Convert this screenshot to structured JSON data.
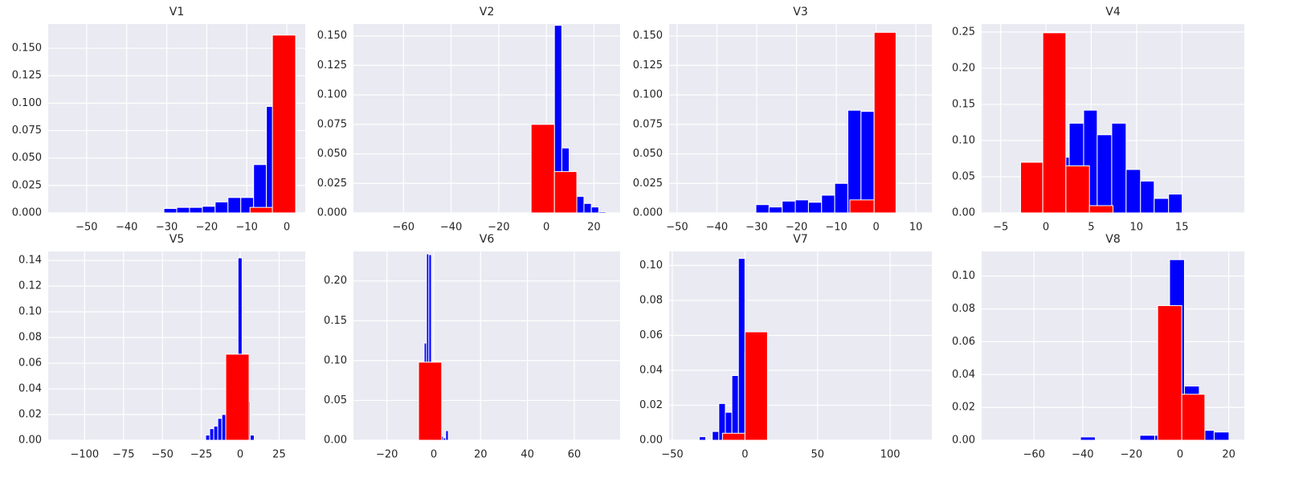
{
  "chart_data": [
    {
      "type": "histogram",
      "title": "V1",
      "xlim": [
        -59.6,
        4.6
      ],
      "ylim": [
        0,
        0.172
      ],
      "xticks": [
        {
          "value": -50,
          "label": "−50"
        },
        {
          "value": -40,
          "label": "−40"
        },
        {
          "value": -30,
          "label": "−30"
        },
        {
          "value": -20,
          "label": "−20"
        },
        {
          "value": -10,
          "label": "−10"
        },
        0
      ],
      "yticks": [
        {
          "value": 0,
          "label": "0.000"
        },
        {
          "value": 0.025,
          "label": "0.025"
        },
        {
          "value": 0.05,
          "label": "0.050"
        },
        {
          "value": 0.075,
          "label": "0.075"
        },
        {
          "value": 0.1,
          "label": "0.100"
        },
        {
          "value": 0.125,
          "label": "0.125"
        },
        {
          "value": 0.15,
          "label": "0.150"
        }
      ],
      "grid": true,
      "series": [
        {
          "color": "#0000ff",
          "bins": [
            -30.7,
            -27.5,
            -24.3,
            -21.1,
            -17.9,
            -14.7,
            -11.5,
            -8.3,
            -5.1,
            -1.9,
            1.3
          ],
          "values": [
            0.004,
            0.005,
            0.005,
            0.006,
            0.01,
            0.014,
            0.014,
            0.044,
            0.097,
            0.16
          ]
        },
        {
          "color": "#ff0000",
          "bins": [
            -9.2,
            -3.6,
            2.2
          ],
          "values": [
            0.005,
            0.162
          ]
        }
      ]
    },
    {
      "type": "histogram",
      "title": "V2",
      "xlim": [
        -81,
        31
      ],
      "ylim": [
        0,
        0.16
      ],
      "xticks": [
        {
          "value": -60,
          "label": "−60"
        },
        {
          "value": -40,
          "label": "−40"
        },
        {
          "value": -20,
          "label": "−20"
        },
        0,
        20
      ],
      "yticks": [
        {
          "value": 0,
          "label": "0.000"
        },
        {
          "value": 0.025,
          "label": "0.025"
        },
        {
          "value": 0.05,
          "label": "0.050"
        },
        {
          "value": 0.075,
          "label": "0.075"
        },
        {
          "value": 0.1,
          "label": "0.100"
        },
        {
          "value": 0.125,
          "label": "0.125"
        },
        {
          "value": 0.15,
          "label": "0.150"
        }
      ],
      "grid": true,
      "series": [
        {
          "color": "#0000ff",
          "bins": [
            0.3,
            3.4,
            6.5,
            9.6,
            12.7,
            15.8,
            18.9,
            22.0,
            25.1
          ],
          "values": [
            0.07,
            0.159,
            0.055,
            0.03,
            0.014,
            0.008,
            0.005,
            0.001
          ]
        },
        {
          "color": "#ff0000",
          "bins": [
            -6.4,
            3.4,
            12.8
          ],
          "values": [
            0.075,
            0.035
          ]
        }
      ]
    },
    {
      "type": "histogram",
      "title": "V3",
      "xlim": [
        -52,
        14
      ],
      "ylim": [
        0,
        0.16
      ],
      "xticks": [
        {
          "value": -50,
          "label": "−50"
        },
        {
          "value": -40,
          "label": "−40"
        },
        {
          "value": -30,
          "label": "−30"
        },
        {
          "value": -20,
          "label": "−20"
        },
        {
          "value": -10,
          "label": "−10"
        },
        0,
        10
      ],
      "yticks": [
        {
          "value": 0,
          "label": "0.000"
        },
        {
          "value": 0.025,
          "label": "0.025"
        },
        {
          "value": 0.05,
          "label": "0.050"
        },
        {
          "value": 0.075,
          "label": "0.075"
        },
        {
          "value": 0.1,
          "label": "0.100"
        },
        {
          "value": 0.125,
          "label": "0.125"
        },
        {
          "value": 0.15,
          "label": "0.150"
        }
      ],
      "grid": true,
      "series": [
        {
          "color": "#0000ff",
          "bins": [
            -30.2,
            -26.9,
            -23.6,
            -20.3,
            -17.0,
            -13.7,
            -10.4,
            -7.1,
            -3.8,
            -0.5,
            2.8
          ],
          "values": [
            0.007,
            0.005,
            0.01,
            0.011,
            0.009,
            0.015,
            0.025,
            0.087,
            0.086,
            0.14
          ]
        },
        {
          "color": "#ff0000",
          "bins": [
            -6.6,
            -0.5,
            5.0
          ],
          "values": [
            0.011,
            0.153
          ]
        }
      ]
    },
    {
      "type": "histogram",
      "title": "V4",
      "xlim": [
        -7.1,
        21.9
      ],
      "ylim": [
        0,
        0.261
      ],
      "xticks": [
        {
          "value": -5,
          "label": "−5"
        },
        0,
        5,
        10,
        15
      ],
      "yticks": [
        {
          "value": 0,
          "label": "0.00"
        },
        {
          "value": 0.05,
          "label": "0.05"
        },
        {
          "value": 0.1,
          "label": "0.10"
        },
        {
          "value": 0.15,
          "label": "0.15"
        },
        {
          "value": 0.2,
          "label": "0.20"
        },
        {
          "value": 0.25,
          "label": "0.25"
        }
      ],
      "grid": true,
      "series": [
        {
          "color": "#0000ff",
          "bins": [
            1.0,
            2.57,
            4.16,
            5.66,
            7.26,
            8.85,
            10.44,
            11.95,
            13.54,
            15.04
          ],
          "values": [
            0.077,
            0.124,
            0.142,
            0.108,
            0.124,
            0.06,
            0.044,
            0.02,
            0.026
          ]
        },
        {
          "color": "#ff0000",
          "bins": [
            -2.8,
            -0.35,
            2.2,
            4.8,
            7.4
          ],
          "values": [
            0.07,
            0.249,
            0.065,
            0.01
          ]
        }
      ]
    },
    {
      "type": "histogram",
      "title": "V5",
      "xlim": [
        -123.4,
        41.8
      ],
      "ylim": [
        0,
        0.147
      ],
      "xticks": [
        {
          "value": -100,
          "label": "−100"
        },
        {
          "value": -75,
          "label": "−75"
        },
        {
          "value": -50,
          "label": "−50"
        },
        {
          "value": -25,
          "label": "−25"
        },
        0,
        25
      ],
      "yticks": [
        {
          "value": 0,
          "label": "0.00"
        },
        {
          "value": 0.02,
          "label": "0.02"
        },
        {
          "value": 0.04,
          "label": "0.04"
        },
        {
          "value": 0.06,
          "label": "0.06"
        },
        {
          "value": 0.08,
          "label": "0.08"
        },
        {
          "value": 0.1,
          "label": "0.10"
        },
        {
          "value": 0.12,
          "label": "0.12"
        },
        {
          "value": 0.14,
          "label": "0.14"
        }
      ],
      "grid": true,
      "series": [
        {
          "color": "#0000ff",
          "bins": [
            -22.2,
            -19.6,
            -17.0,
            -14.4,
            -11.8,
            -9.2,
            -6.6,
            -4.0,
            -1.4,
            1.2,
            3.8,
            6.4,
            9.0
          ],
          "values": [
            0.004,
            0.009,
            0.011,
            0.017,
            0.02,
            0.03,
            0.04,
            0.06,
            0.142,
            0.06,
            0.03,
            0.004
          ]
        },
        {
          "color": "#ff0000",
          "bins": [
            -9.3,
            5.7
          ],
          "values": [
            0.067
          ]
        }
      ]
    },
    {
      "type": "histogram",
      "title": "V6",
      "xlim": [
        -34.3,
        79.6
      ],
      "ylim": [
        0,
        0.237
      ],
      "xticks": [
        {
          "value": -20,
          "label": "−20"
        },
        0,
        20,
        40,
        60
      ],
      "yticks": [
        {
          "value": 0,
          "label": "0.00"
        },
        {
          "value": 0.05,
          "label": "0.05"
        },
        {
          "value": 0.1,
          "label": "0.10"
        },
        {
          "value": 0.15,
          "label": "0.15"
        },
        {
          "value": 0.2,
          "label": "0.20"
        }
      ],
      "grid": true,
      "series": [
        {
          "color": "#0000ff",
          "bins": [
            -4.1,
            -3.1,
            -2.1,
            -1.0,
            0.0,
            1.0,
            2.0,
            3.1,
            4.1,
            5.1,
            6.2
          ],
          "values": [
            0.122,
            0.234,
            0.233,
            0.09,
            0.05,
            0.02,
            0.01,
            0.005,
            0.003,
            0.012
          ]
        },
        {
          "color": "#ff0000",
          "bins": [
            -6.5,
            3.4
          ],
          "values": [
            0.098
          ]
        }
      ]
    },
    {
      "type": "histogram",
      "title": "V7",
      "xlim": [
        -52.2,
        128.7
      ],
      "ylim": [
        0,
        0.108
      ],
      "xticks": [
        {
          "value": -50,
          "label": "−50"
        },
        0,
        50,
        100
      ],
      "yticks": [
        {
          "value": 0,
          "label": "0.00"
        },
        {
          "value": 0.02,
          "label": "0.02"
        },
        {
          "value": 0.04,
          "label": "0.04"
        },
        {
          "value": 0.06,
          "label": "0.06"
        },
        {
          "value": 0.08,
          "label": "0.08"
        },
        {
          "value": 0.1,
          "label": "0.10"
        }
      ],
      "grid": true,
      "series": [
        {
          "color": "#0000ff",
          "bins": [
            -31.5,
            -27,
            -22.5,
            -18,
            -13.5,
            -9,
            -4.5,
            0,
            4.5,
            9
          ],
          "values": [
            0.002,
            0,
            0.005,
            0.021,
            0.016,
            0.037,
            0.104,
            0.05,
            0.02
          ]
        },
        {
          "color": "#ff0000",
          "bins": [
            -15.5,
            0,
            15.5
          ],
          "values": [
            0.004,
            0.062
          ]
        }
      ]
    },
    {
      "type": "histogram",
      "title": "V8",
      "xlim": [
        -81.5,
        26.4
      ],
      "ylim": [
        0,
        0.115
      ],
      "xticks": [
        {
          "value": -60,
          "label": "−60"
        },
        {
          "value": -40,
          "label": "−40"
        },
        {
          "value": -20,
          "label": "−20"
        },
        0,
        20
      ],
      "yticks": [
        {
          "value": 0,
          "label": "0.00"
        },
        {
          "value": 0.02,
          "label": "0.02"
        },
        {
          "value": 0.04,
          "label": "0.04"
        },
        {
          "value": 0.06,
          "label": "0.06"
        },
        {
          "value": 0.08,
          "label": "0.08"
        },
        {
          "value": 0.1,
          "label": "0.10"
        }
      ],
      "grid": true,
      "series": [
        {
          "color": "#0000ff",
          "bins": [
            -40.9,
            -34.8,
            -28.7,
            -22.6,
            -16.5,
            -10.4,
            -4.3,
            1.8,
            7.9,
            14.0,
            20.1
          ],
          "values": [
            0.002,
            0,
            0,
            0,
            0.003,
            0.003,
            0.11,
            0.033,
            0.006,
            0.005
          ]
        },
        {
          "color": "#ff0000",
          "bins": [
            -9.2,
            0.7,
            10.2
          ],
          "values": [
            0.082,
            0.028
          ]
        }
      ]
    }
  ]
}
